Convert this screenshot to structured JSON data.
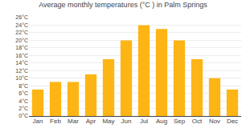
{
  "chart_data": {
    "type": "bar",
    "title": "Average monthly temperatures (°C ) in Palm Springs",
    "categories": [
      "Jan",
      "Feb",
      "Mar",
      "Apr",
      "May",
      "Jun",
      "Jul",
      "Aug",
      "Sep",
      "Oct",
      "Nov",
      "Dec"
    ],
    "values": [
      7,
      9,
      9,
      11,
      15,
      20,
      24,
      23,
      20,
      15,
      10,
      7
    ],
    "color": "#FDB515",
    "ylim": [
      0,
      26
    ],
    "yticks": [
      {
        "value": 0,
        "label": "0°C"
      },
      {
        "value": 2,
        "label": "2°C"
      },
      {
        "value": 4,
        "label": "4°C"
      },
      {
        "value": 6,
        "label": "6°C"
      },
      {
        "value": 8,
        "label": "8°C"
      },
      {
        "value": 10,
        "label": "10°C"
      },
      {
        "value": 12,
        "label": "12°C"
      },
      {
        "value": 14,
        "label": "14°C"
      },
      {
        "value": 16,
        "label": "16°C"
      },
      {
        "value": 18,
        "label": "18°C"
      },
      {
        "value": 20,
        "label": "20°C"
      },
      {
        "value": 22,
        "label": "22°C"
      },
      {
        "value": 24,
        "label": "24°C"
      },
      {
        "value": 26,
        "label": "26°C"
      }
    ],
    "grid": true
  }
}
